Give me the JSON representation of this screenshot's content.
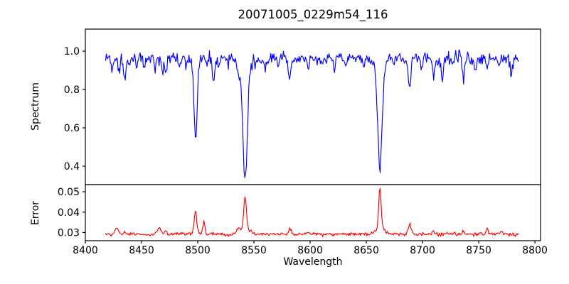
{
  "figure": {
    "title": "20071005_0229m54_116"
  },
  "chart_data": {
    "type": "line",
    "title": "20071005_0229m54_116",
    "xlabel": "Wavelength",
    "xlim": [
      8400,
      8805
    ],
    "x_ticks": [
      "8400",
      "8450",
      "8500",
      "8550",
      "8600",
      "8650",
      "8700",
      "8750",
      "8800"
    ],
    "x_data_range": [
      8418,
      8786
    ],
    "grid": false,
    "legend": "none",
    "panels": [
      {
        "name": "spectrum",
        "ylabel": "Spectrum",
        "color": "#0000ff",
        "ylim": [
          0.304,
          1.115
        ],
        "y_ticks": [
          "0.4",
          "0.6",
          "0.8",
          "1.0"
        ],
        "model": {
          "continuum": 0.965,
          "noise_sigma": 0.016,
          "seed": 20071005,
          "step": 0.7,
          "absorption_lines": [
            [
              8424.5,
              0.05,
              0.9
            ],
            [
              8430.0,
              0.06,
              0.8
            ],
            [
              8435.0,
              0.12,
              1.1
            ],
            [
              8439.5,
              0.05,
              0.8
            ],
            [
              8446.0,
              0.05,
              0.8
            ],
            [
              8452.0,
              0.04,
              0.8
            ],
            [
              8462.0,
              0.07,
              0.9
            ],
            [
              8468.5,
              0.07,
              0.9
            ],
            [
              8471.5,
              0.09,
              0.9
            ],
            [
              8484.0,
              0.045,
              0.8
            ],
            [
              8490.0,
              0.04,
              0.8
            ],
            [
              8498.0,
              0.44,
              1.4
            ],
            [
              8508.0,
              0.04,
              0.8
            ],
            [
              8514.0,
              0.11,
              1.1
            ],
            [
              8518.5,
              0.05,
              0.8
            ],
            [
              8527.0,
              0.045,
              0.8
            ],
            [
              8536.0,
              0.07,
              1.0
            ],
            [
              8542.1,
              0.55,
              1.9
            ],
            [
              8542.1,
              0.075,
              5.0
            ],
            [
              8556.0,
              0.045,
              0.8
            ],
            [
              8560.0,
              0.04,
              0.8
            ],
            [
              8572.0,
              0.04,
              0.8
            ],
            [
              8582.0,
              0.12,
              1.1
            ],
            [
              8598.0,
              0.06,
              0.9
            ],
            [
              8611.0,
              0.055,
              0.9
            ],
            [
              8621.5,
              0.07,
              0.9
            ],
            [
              8632.0,
              0.045,
              0.8
            ],
            [
              8648.0,
              0.07,
              0.9
            ],
            [
              8662.1,
              0.53,
              1.8
            ],
            [
              8662.1,
              0.07,
              4.5
            ],
            [
              8674.5,
              0.055,
              0.8
            ],
            [
              8688.5,
              0.16,
              1.2
            ],
            [
              8699.0,
              0.045,
              0.8
            ],
            [
              8710.0,
              0.1,
              1.0
            ],
            [
              8717.5,
              0.11,
              1.0
            ],
            [
              8727.0,
              0.045,
              0.8
            ],
            [
              8736.5,
              0.11,
              1.0
            ],
            [
              8747.0,
              0.06,
              0.9
            ],
            [
              8757.5,
              0.05,
              0.8
            ],
            [
              8768.0,
              0.05,
              0.8
            ],
            [
              8779.0,
              0.1,
              1.0
            ]
          ]
        }
      },
      {
        "name": "error",
        "ylabel": "Error",
        "color": "#ff0000",
        "ylim": [
          0.026,
          0.0535
        ],
        "y_ticks": [
          "0.03",
          "0.04",
          "0.05"
        ],
        "model": {
          "baseline": 0.0292,
          "noise_sigma": 0.00045,
          "seed": 229,
          "step": 0.7,
          "emission_peaks": [
            [
              8428.0,
              0.0028,
              1.3
            ],
            [
              8435.0,
              0.0014,
              1.0
            ],
            [
              8465.5,
              0.0032,
              1.6
            ],
            [
              8471.5,
              0.0018,
              1.0
            ],
            [
              8498.0,
              0.01,
              1.0
            ],
            [
              8498.0,
              0.0015,
              3.0
            ],
            [
              8505.5,
              0.0058,
              0.9
            ],
            [
              8536.0,
              0.0022,
              1.2
            ],
            [
              8542.1,
              0.016,
              1.1
            ],
            [
              8542.1,
              0.003,
              4.0
            ],
            [
              8582.0,
              0.0026,
              1.0
            ],
            [
              8598.0,
              0.0012,
              1.0
            ],
            [
              8662.1,
              0.0195,
              1.0
            ],
            [
              8662.1,
              0.004,
              3.5
            ],
            [
              8688.5,
              0.0048,
              1.2
            ],
            [
              8710.0,
              0.0012,
              1.0
            ],
            [
              8736.5,
              0.0014,
              1.0
            ],
            [
              8757.5,
              0.0026,
              0.9
            ],
            [
              8770.0,
              0.0014,
              0.9
            ]
          ]
        }
      }
    ],
    "axis_color": "#000000"
  }
}
